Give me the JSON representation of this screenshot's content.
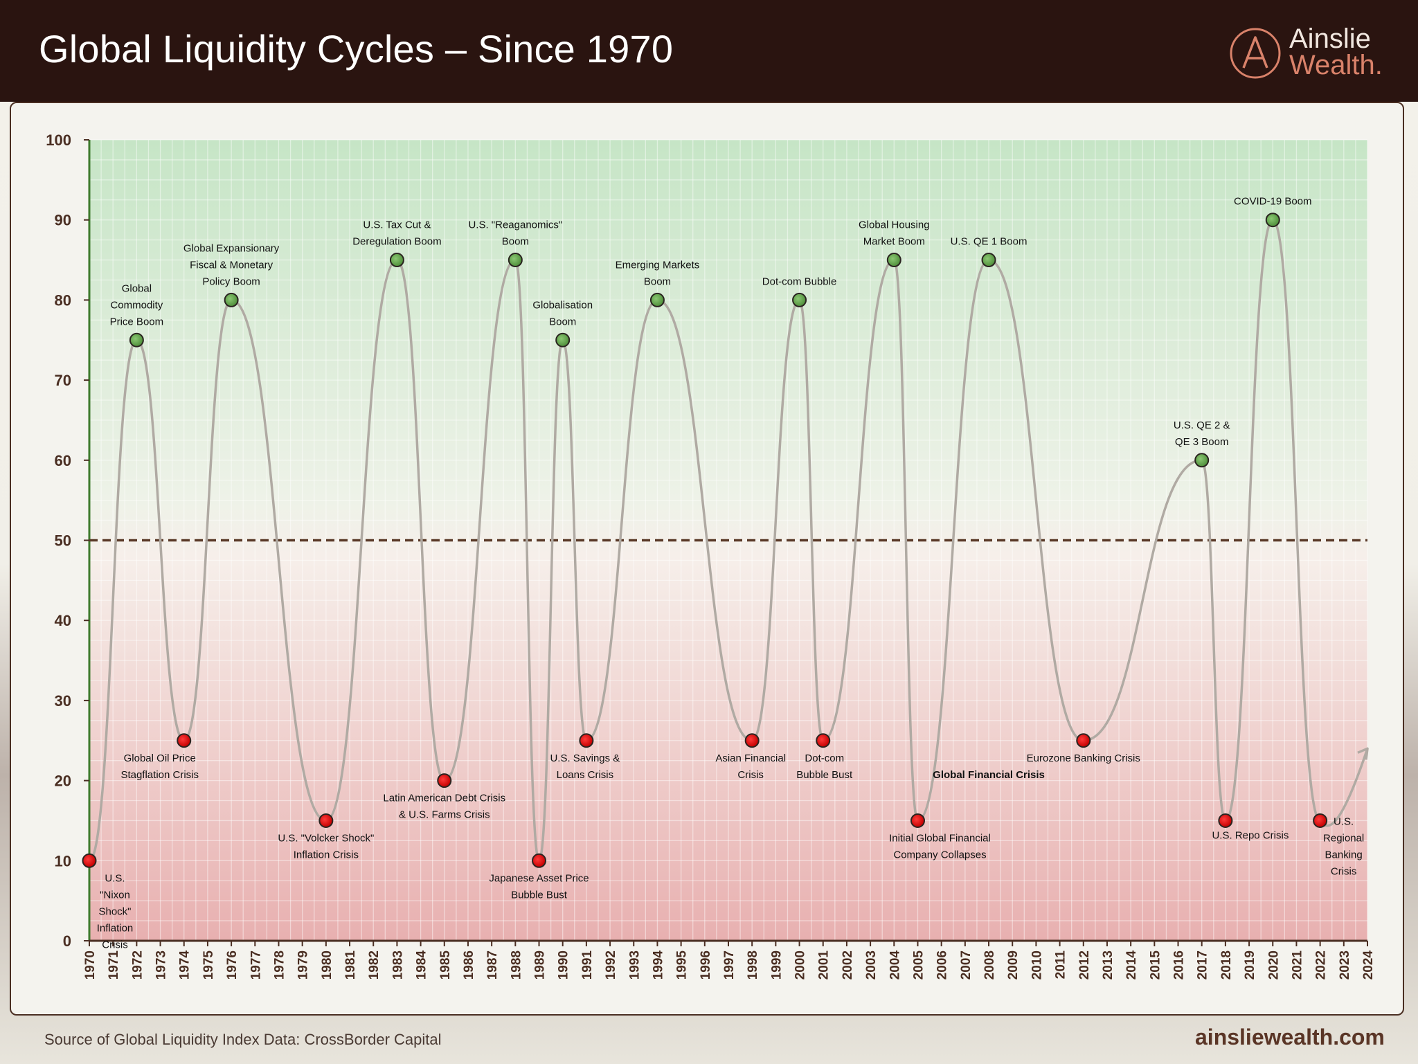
{
  "header": {
    "title": "Global Liquidity Cycles – Since 1970"
  },
  "logo": {
    "line1": "Ainslie",
    "line2": "Wealth."
  },
  "footer": {
    "source": "Source of Global Liquidity Index Data: CrossBorder Capital",
    "site": "ainsliewealth.com"
  },
  "colors": {
    "boom": "#5a9a45",
    "crisis": "#d40f0f",
    "line": "#b0aaa3",
    "dashed": "#5a3a28",
    "header": "#2a1410",
    "accent": "#d9826a"
  },
  "chart_data": {
    "type": "line",
    "title": "Global Liquidity Cycles – Since 1970",
    "xlabel": "",
    "ylabel": "",
    "xlim": [
      1970,
      2024
    ],
    "ylim": [
      0,
      100
    ],
    "y_ticks": [
      0,
      10,
      20,
      30,
      40,
      50,
      60,
      70,
      80,
      90,
      100
    ],
    "x_ticks": [
      1970,
      1971,
      1972,
      1973,
      1974,
      1975,
      1976,
      1977,
      1978,
      1979,
      1980,
      1981,
      1982,
      1983,
      1984,
      1985,
      1986,
      1987,
      1988,
      1989,
      1990,
      1991,
      1992,
      1993,
      1994,
      1995,
      1996,
      1997,
      1998,
      1999,
      2000,
      2001,
      2002,
      2003,
      2004,
      2005,
      2006,
      2007,
      2008,
      2009,
      2010,
      2011,
      2012,
      2013,
      2014,
      2015,
      2016,
      2017,
      2018,
      2019,
      2020,
      2021,
      2022,
      2023,
      2024
    ],
    "reference_line": 50,
    "grid": true,
    "points": [
      {
        "x": 1970,
        "y": 10,
        "kind": "crisis",
        "label": [
          "U.S.",
          "\"Nixon",
          "Shock\"",
          "Inflation",
          "Crisis"
        ]
      },
      {
        "x": 1972,
        "y": 75,
        "kind": "boom",
        "label": [
          "Global",
          "Commodity",
          "Price Boom"
        ]
      },
      {
        "x": 1974,
        "y": 25,
        "kind": "crisis",
        "label": [
          "Global Oil Price",
          "Stagflation Crisis"
        ]
      },
      {
        "x": 1976,
        "y": 80,
        "kind": "boom",
        "label": [
          "Global Expansionary",
          "Fiscal & Monetary",
          "Policy Boom"
        ]
      },
      {
        "x": 1980,
        "y": 15,
        "kind": "crisis",
        "label": [
          "U.S. \"Volcker Shock\"",
          "Inflation Crisis"
        ]
      },
      {
        "x": 1983,
        "y": 85,
        "kind": "boom",
        "label": [
          "U.S. Tax Cut &",
          "Deregulation Boom"
        ]
      },
      {
        "x": 1985,
        "y": 20,
        "kind": "crisis",
        "label": [
          "Latin American Debt Crisis",
          "& U.S. Farms Crisis"
        ]
      },
      {
        "x": 1988,
        "y": 85,
        "kind": "boom",
        "label": [
          "U.S. \"Reaganomics\"",
          "Boom"
        ]
      },
      {
        "x": 1989,
        "y": 10,
        "kind": "crisis",
        "label": [
          "Japanese Asset Price",
          "Bubble Bust"
        ]
      },
      {
        "x": 1990,
        "y": 75,
        "kind": "boom",
        "label": [
          "Globalisation",
          "Boom"
        ]
      },
      {
        "x": 1991,
        "y": 25,
        "kind": "crisis",
        "label": [
          "U.S. Savings &",
          "Loans Crisis"
        ]
      },
      {
        "x": 1994,
        "y": 80,
        "kind": "boom",
        "label": [
          "Emerging Markets",
          "Boom"
        ]
      },
      {
        "x": 1998,
        "y": 25,
        "kind": "crisis",
        "label": [
          "Asian Financial",
          "Crisis"
        ]
      },
      {
        "x": 2000,
        "y": 80,
        "kind": "boom",
        "label": [
          "Dot-com Bubble"
        ]
      },
      {
        "x": 2001,
        "y": 25,
        "kind": "crisis",
        "label": [
          "Dot-com",
          "Bubble Bust"
        ]
      },
      {
        "x": 2004,
        "y": 85,
        "kind": "boom",
        "label": [
          "Global Housing",
          "Market Boom"
        ]
      },
      {
        "x": 2005,
        "y": 15,
        "kind": "crisis",
        "label": [
          "Initial Global Financial",
          "Company Collapses"
        ]
      },
      {
        "x": 2008,
        "y": 85,
        "kind": "boom",
        "label": [
          "U.S. QE 1 Boom"
        ]
      },
      {
        "x": 2012,
        "y": 25,
        "kind": "crisis",
        "label": [
          "Eurozone Banking Crisis"
        ]
      },
      {
        "x": 2017,
        "y": 60,
        "kind": "boom",
        "label": [
          "U.S. QE 2 &",
          "QE 3 Boom"
        ]
      },
      {
        "x": 2018,
        "y": 15,
        "kind": "crisis",
        "label": [
          "U.S. Repo Crisis"
        ]
      },
      {
        "x": 2020,
        "y": 90,
        "kind": "boom",
        "label": [
          "COVID-19 Boom"
        ]
      },
      {
        "x": 2022,
        "y": 15,
        "kind": "crisis",
        "label": [
          "U.S.",
          "Regional",
          "Banking",
          "Crisis"
        ]
      }
    ],
    "arrow_end": {
      "x": 2024,
      "y": 24
    },
    "annotations": [
      {
        "text": "Global Financial Crisis",
        "x": 2008,
        "y": 20.3,
        "bold": true
      }
    ]
  }
}
